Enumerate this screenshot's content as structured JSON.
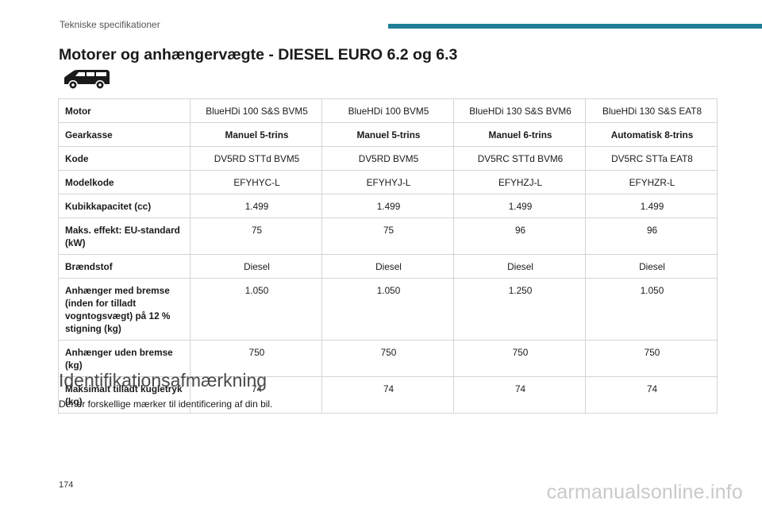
{
  "header": {
    "running_title": "Tekniske specifikationer"
  },
  "section": {
    "title": "Motorer og anhængervægte - DIESEL EURO 6.2 og 6.3"
  },
  "vehicle_icon": "van-icon",
  "table": {
    "rows": [
      {
        "label": "Motor",
        "bold": false,
        "values": [
          "BlueHDi 100 S&S BVM5",
          "BlueHDi 100 BVM5",
          "BlueHDi 130 S&S BVM6",
          "BlueHDi 130 S&S EAT8"
        ]
      },
      {
        "label": "Gearkasse",
        "bold": true,
        "values": [
          "Manuel 5-trins",
          "Manuel 5-trins",
          "Manuel 6-trins",
          "Automatisk 8-trins"
        ]
      },
      {
        "label": "Kode",
        "bold": false,
        "values": [
          "DV5RD STTd BVM5",
          "DV5RD BVM5",
          "DV5RC STTd BVM6",
          "DV5RC STTa EAT8"
        ]
      },
      {
        "label": "Modelkode",
        "bold": false,
        "values": [
          "EFYHYC-L",
          "EFYHYJ-L",
          "EFYHZJ-L",
          "EFYHZR-L"
        ]
      },
      {
        "label": "Kubikkapacitet (cc)",
        "bold": false,
        "values": [
          "1.499",
          "1.499",
          "1.499",
          "1.499"
        ]
      },
      {
        "label": "Maks. effekt: EU-standard (kW)",
        "bold": false,
        "values": [
          "75",
          "75",
          "96",
          "96"
        ]
      },
      {
        "label": "Brændstof",
        "bold": false,
        "values": [
          "Diesel",
          "Diesel",
          "Diesel",
          "Diesel"
        ]
      },
      {
        "label": "Anhænger med bremse (inden for tilladt vogntogsvægt) på 12 % stigning (kg)",
        "bold": false,
        "values": [
          "1.050",
          "1.050",
          "1.250",
          "1.050"
        ]
      },
      {
        "label": "Anhænger uden bremse (kg)",
        "bold": false,
        "values": [
          "750",
          "750",
          "750",
          "750"
        ]
      },
      {
        "label": "Maksimalt tilladt kugletryk (kg)",
        "bold": false,
        "values": [
          "74",
          "74",
          "74",
          "74"
        ]
      }
    ]
  },
  "identification": {
    "title": "Identifikationsafmærkning",
    "text": "Der er forskellige mærker til identificering af din bil."
  },
  "footer": {
    "page_number": "174",
    "watermark": "carmanualsonline.info"
  },
  "colors": {
    "accent": "#1e7f95",
    "border": "#d4d4d4"
  }
}
